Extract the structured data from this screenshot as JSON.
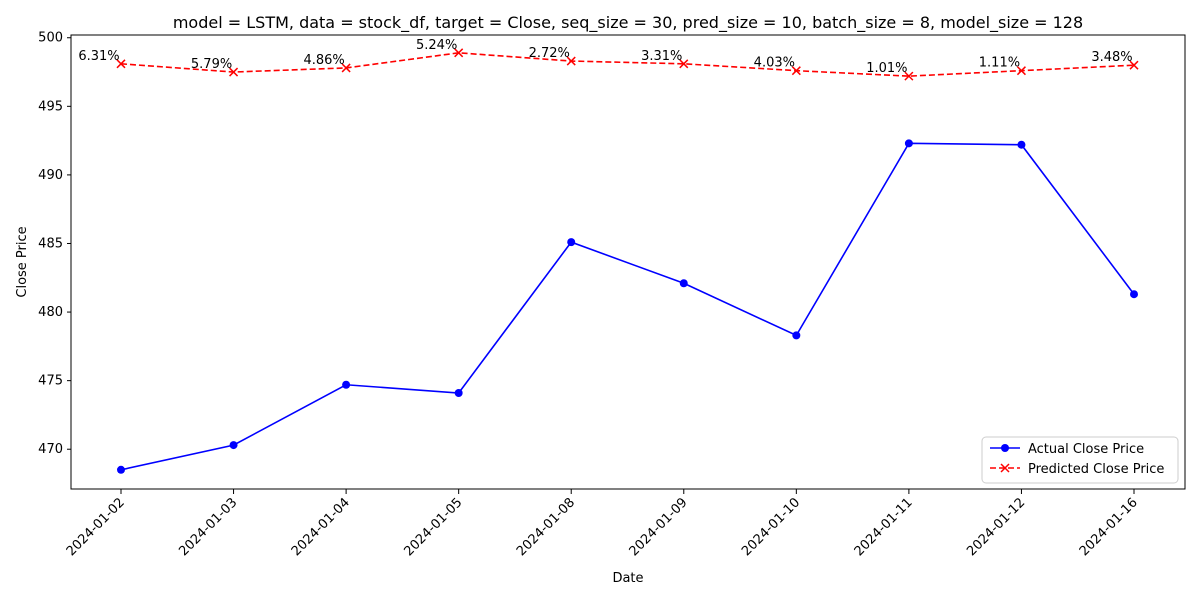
{
  "chart_data": {
    "type": "line",
    "title": "model = LSTM, data = stock_df, target = Close, seq_size = 30, pred_size = 10, batch_size = 8, model_size = 128",
    "xlabel": "Date",
    "ylabel": "Close Price",
    "categories": [
      "2024-01-02",
      "2024-01-03",
      "2024-01-04",
      "2024-01-05",
      "2024-01-08",
      "2024-01-09",
      "2024-01-10",
      "2024-01-11",
      "2024-01-12",
      "2024-01-16"
    ],
    "ylim": [
      467.1,
      500.2
    ],
    "yticks": [
      470,
      475,
      480,
      485,
      490,
      495,
      500
    ],
    "grid": false,
    "legend_position": "bottom-right",
    "series": [
      {
        "name": "Actual Close Price",
        "color": "#0000ff",
        "line_style": "solid",
        "marker": "circle",
        "values": [
          468.5,
          470.3,
          474.7,
          474.1,
          485.1,
          482.1,
          478.3,
          492.3,
          492.2,
          481.3
        ]
      },
      {
        "name": "Predicted Close Price",
        "color": "#ff0000",
        "line_style": "dashed",
        "marker": "x",
        "values": [
          498.1,
          497.5,
          497.8,
          498.9,
          498.3,
          498.1,
          497.6,
          497.2,
          497.6,
          498.0
        ]
      }
    ],
    "annotations": [
      "6.31%",
      "5.79%",
      "4.86%",
      "5.24%",
      "2.72%",
      "3.31%",
      "4.03%",
      "1.01%",
      "1.11%",
      "3.48%"
    ]
  }
}
